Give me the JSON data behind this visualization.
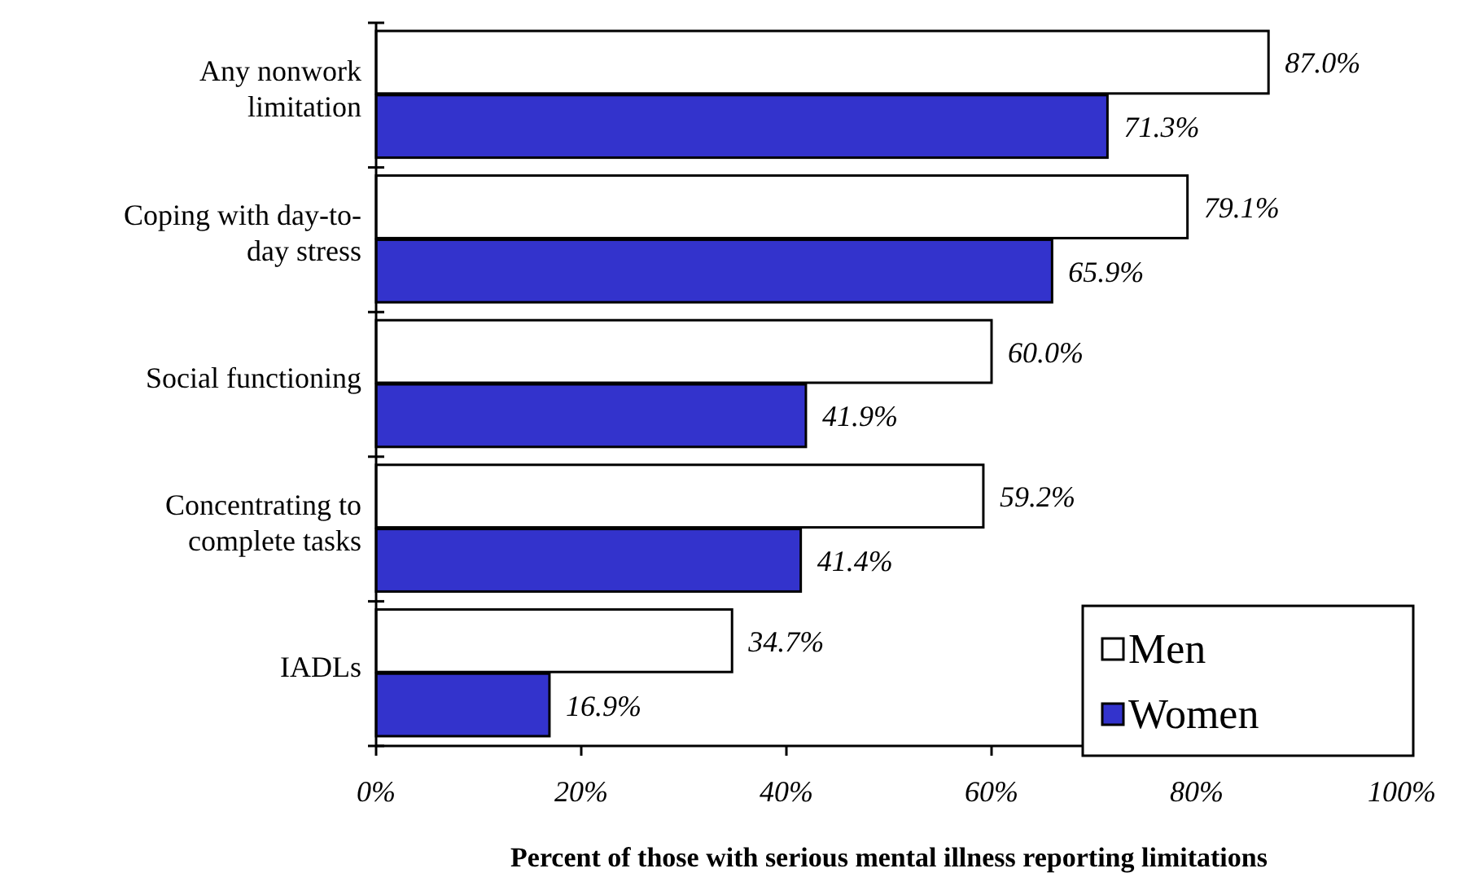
{
  "chart_data": {
    "type": "bar",
    "orientation": "horizontal",
    "xlabel": "Percent of those with serious mental illness reporting limitations",
    "categories": [
      "Any nonwork limitation",
      "Coping with day-to-day stress",
      "Social functioning",
      "Concentrating to complete tasks",
      "IADLs"
    ],
    "series": [
      {
        "name": "Men",
        "color": "#ffffff",
        "values": [
          87.0,
          79.1,
          60.0,
          59.2,
          34.7
        ],
        "value_labels": [
          "87.0%",
          "79.1%",
          "60.0%",
          "59.2%",
          "34.7%"
        ]
      },
      {
        "name": "Women",
        "color": "#3333cc",
        "values": [
          71.3,
          65.9,
          41.9,
          41.4,
          16.9
        ],
        "value_labels": [
          "71.3%",
          "65.9%",
          "41.9%",
          "41.4%",
          "16.9%"
        ]
      }
    ],
    "xlim": [
      0,
      100
    ],
    "xticks": [
      {
        "value": 0,
        "label": "0%"
      },
      {
        "value": 20,
        "label": "20%"
      },
      {
        "value": 40,
        "label": "40%"
      },
      {
        "value": 60,
        "label": "60%"
      },
      {
        "value": 80,
        "label": "80%"
      },
      {
        "value": 100,
        "label": "100%"
      }
    ],
    "grid": false,
    "legend": "bottom right"
  }
}
